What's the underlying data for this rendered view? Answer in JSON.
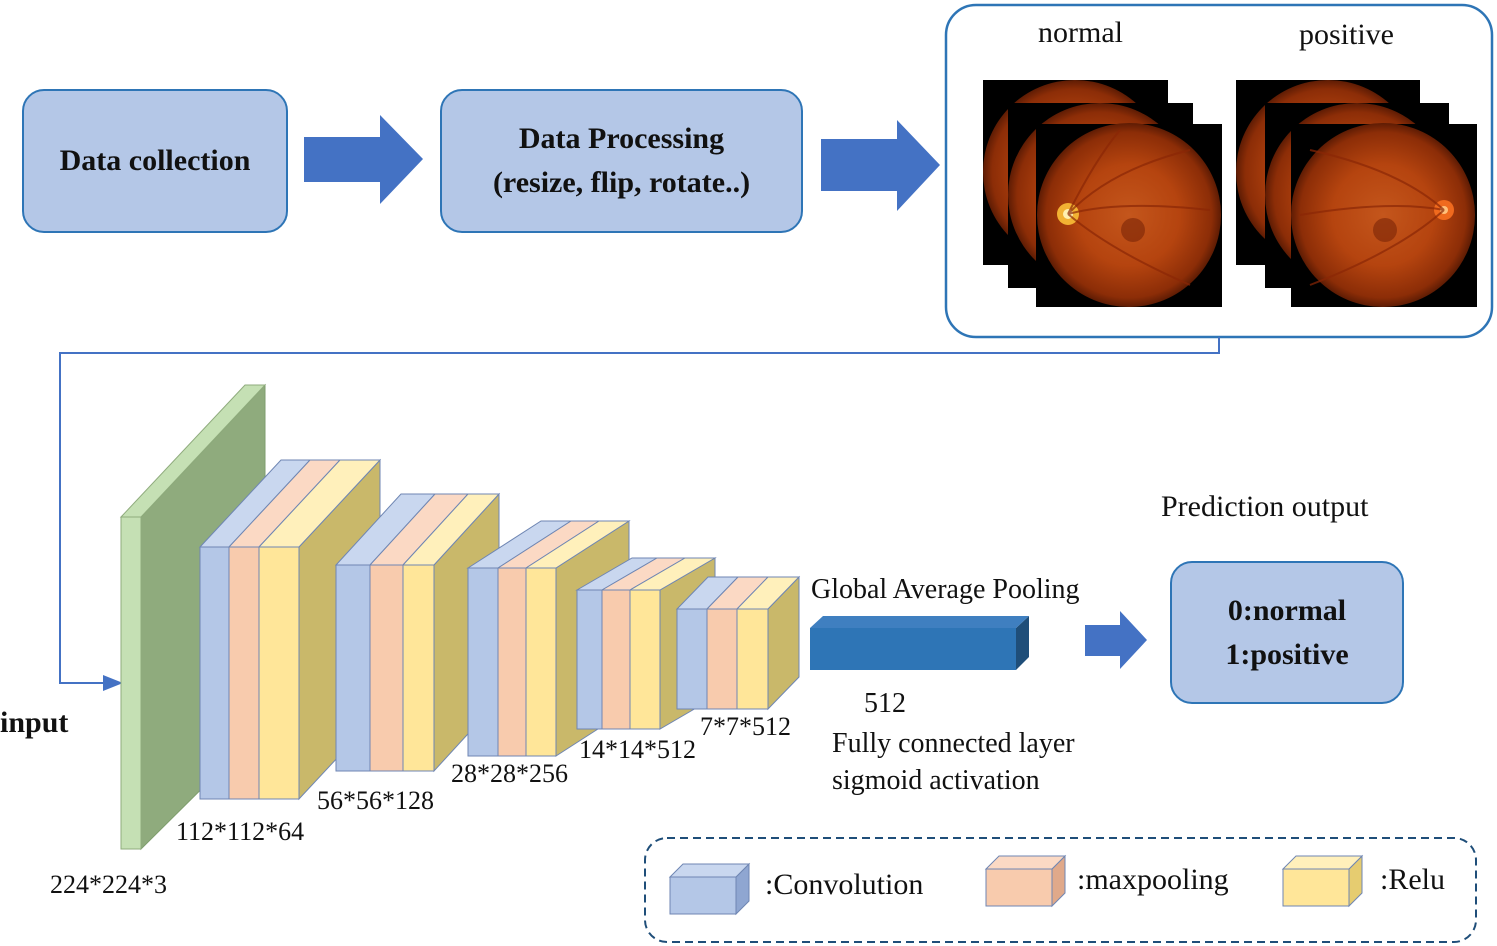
{
  "pipeline": {
    "collection_label": "Data collection",
    "processing_title": "Data Processing",
    "processing_subtitle": "(resize, flip, rotate..)",
    "class_normal": "normal",
    "class_positive": "positive"
  },
  "network": {
    "input_label": "input",
    "input_dim": "224*224*3",
    "block_dims": [
      "112*112*64",
      "56*56*128",
      "28*28*256",
      "14*14*512",
      "7*7*512"
    ],
    "gap_label": "Global Average Pooling",
    "gap_size": "512",
    "fc_label": "Fully connected layer",
    "fc_activation": "sigmoid activation"
  },
  "output": {
    "title": "Prediction output",
    "line1": "0:normal",
    "line2": "1:positive"
  },
  "legend": {
    "items": [
      {
        "label": ":Convolution",
        "color": "#b4c7e7"
      },
      {
        "label": ":maxpooling",
        "color": "#f8cbad"
      },
      {
        "label": ":Relu",
        "color": "#ffe699"
      }
    ]
  },
  "colors": {
    "accent": "#2e75b6",
    "arrow": "#4472c4",
    "box_fill": "#b4c7e7",
    "input_layer": "#c5e0b4",
    "gap_bar": "#2e75b6"
  }
}
